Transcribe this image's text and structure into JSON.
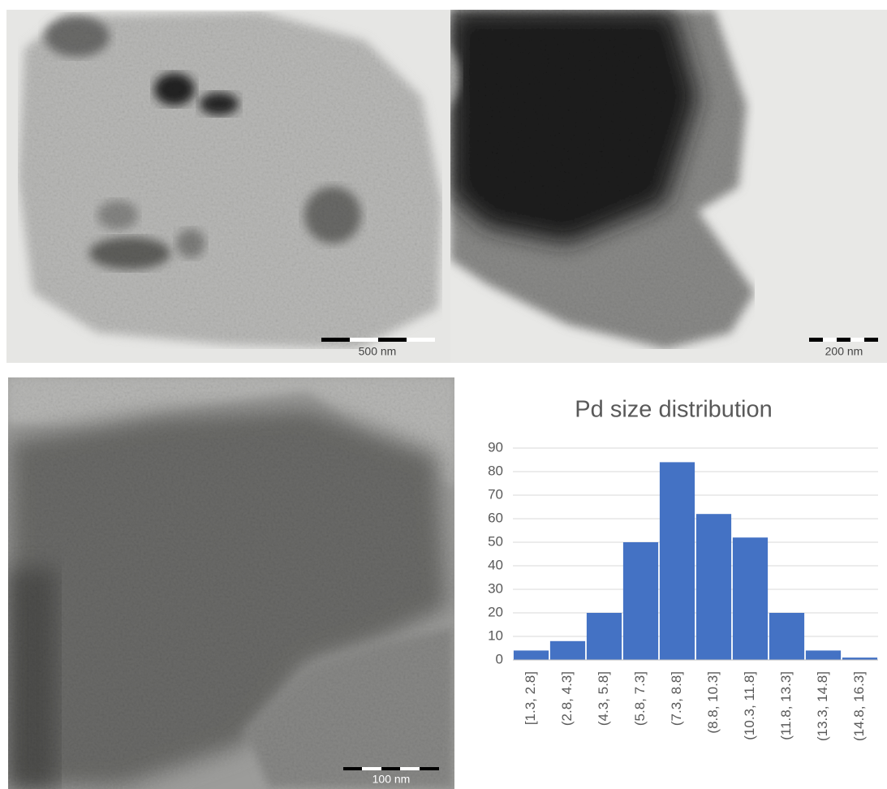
{
  "micrographs": [
    {
      "scale_bar": "500 nm"
    },
    {
      "scale_bar": "200 nm"
    },
    {
      "scale_bar": "100 nm"
    }
  ],
  "chart_data": {
    "type": "bar",
    "title": "Pd size distribution",
    "categories": [
      "[1.3, 2.8]",
      "(2.8, 4.3]",
      "(4.3, 5.8]",
      "(5.8, 7.3]",
      "(7.3, 8.8]",
      "(8.8, 10.3]",
      "(10.3, 11.8]",
      "(11.8, 13.3]",
      "(13.3, 14.8]",
      "(14.8, 16.3]"
    ],
    "values": [
      4,
      8,
      20,
      50,
      84,
      62,
      52,
      20,
      4,
      1
    ],
    "color": "#4472c4",
    "ylim": [
      0,
      90
    ],
    "yticks": [
      0,
      10,
      20,
      30,
      40,
      50,
      60,
      70,
      80,
      90
    ],
    "grid": true
  }
}
